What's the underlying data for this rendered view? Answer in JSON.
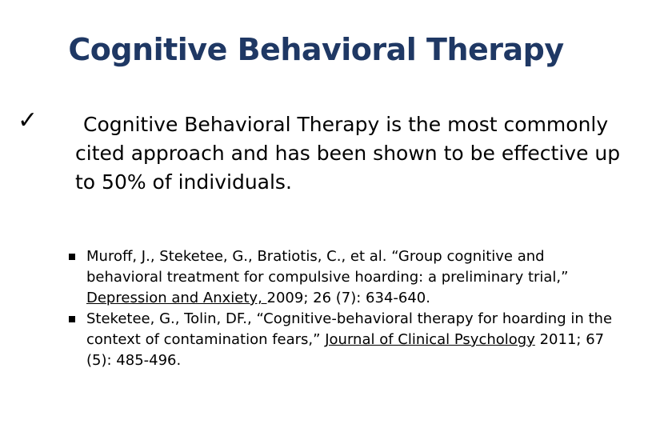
{
  "slide": {
    "title": "Cognitive Behavioral Therapy",
    "bullet_text": "Cognitive Behavioral Therapy is the most commonly cited approach and has been shown to be effective up to 50% of individuals.",
    "references": [
      {
        "pre": "Muroff, J., Steketee, G., Bratiotis, C., et al. “Group cognitive and behavioral treatment for compulsive hoarding: a preliminary trial,” ",
        "journal": "Depression and Anxiety, ",
        "post": "2009; 26 (7): 634-640."
      },
      {
        "pre": "Steketee, G., Tolin, DF., “Cognitive-behavioral therapy for hoarding in the context of contamination fears,” ",
        "journal": "Journal of Clinical Psychology",
        "post": " 2011; 67 (5): 485-496."
      }
    ]
  },
  "colors": {
    "title": "#1f3864",
    "text": "#000000"
  },
  "icons": {
    "bullet": "checkmark-icon",
    "sub_bullet": "square-bullet-icon"
  }
}
